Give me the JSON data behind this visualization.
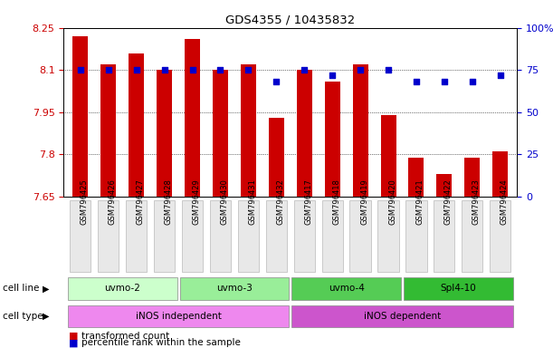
{
  "title": "GDS4355 / 10435832",
  "samples": [
    "GSM796425",
    "GSM796426",
    "GSM796427",
    "GSM796428",
    "GSM796429",
    "GSM796430",
    "GSM796431",
    "GSM796432",
    "GSM796417",
    "GSM796418",
    "GSM796419",
    "GSM796420",
    "GSM796421",
    "GSM796422",
    "GSM796423",
    "GSM796424"
  ],
  "transformed_count": [
    8.22,
    8.12,
    8.16,
    8.1,
    8.21,
    8.1,
    8.12,
    7.93,
    8.1,
    8.06,
    8.12,
    7.94,
    7.79,
    7.73,
    7.79,
    7.81
  ],
  "percentile_rank": [
    75,
    75,
    75,
    75,
    75,
    75,
    75,
    68,
    75,
    72,
    75,
    75,
    68,
    68,
    68,
    72
  ],
  "cell_line_groups": [
    {
      "label": "uvmo-2",
      "start": 0,
      "end": 3,
      "color": "#ccffcc"
    },
    {
      "label": "uvmo-3",
      "start": 4,
      "end": 7,
      "color": "#99ee99"
    },
    {
      "label": "uvmo-4",
      "start": 8,
      "end": 11,
      "color": "#55cc55"
    },
    {
      "label": "Spl4-10",
      "start": 12,
      "end": 15,
      "color": "#33bb33"
    }
  ],
  "cell_type_groups": [
    {
      "label": "iNOS independent",
      "start": 0,
      "end": 7,
      "color": "#ee88ee"
    },
    {
      "label": "iNOS dependent",
      "start": 8,
      "end": 15,
      "color": "#cc55cc"
    }
  ],
  "ylim_left": [
    7.65,
    8.25
  ],
  "ylim_right": [
    0,
    100
  ],
  "yticks_left": [
    7.65,
    7.8,
    7.95,
    8.1,
    8.25
  ],
  "yticks_right": [
    0,
    25,
    50,
    75,
    100
  ],
  "bar_color": "#cc0000",
  "dot_color": "#0000cc",
  "bar_width": 0.55,
  "fig_width": 6.11,
  "fig_height": 3.84
}
